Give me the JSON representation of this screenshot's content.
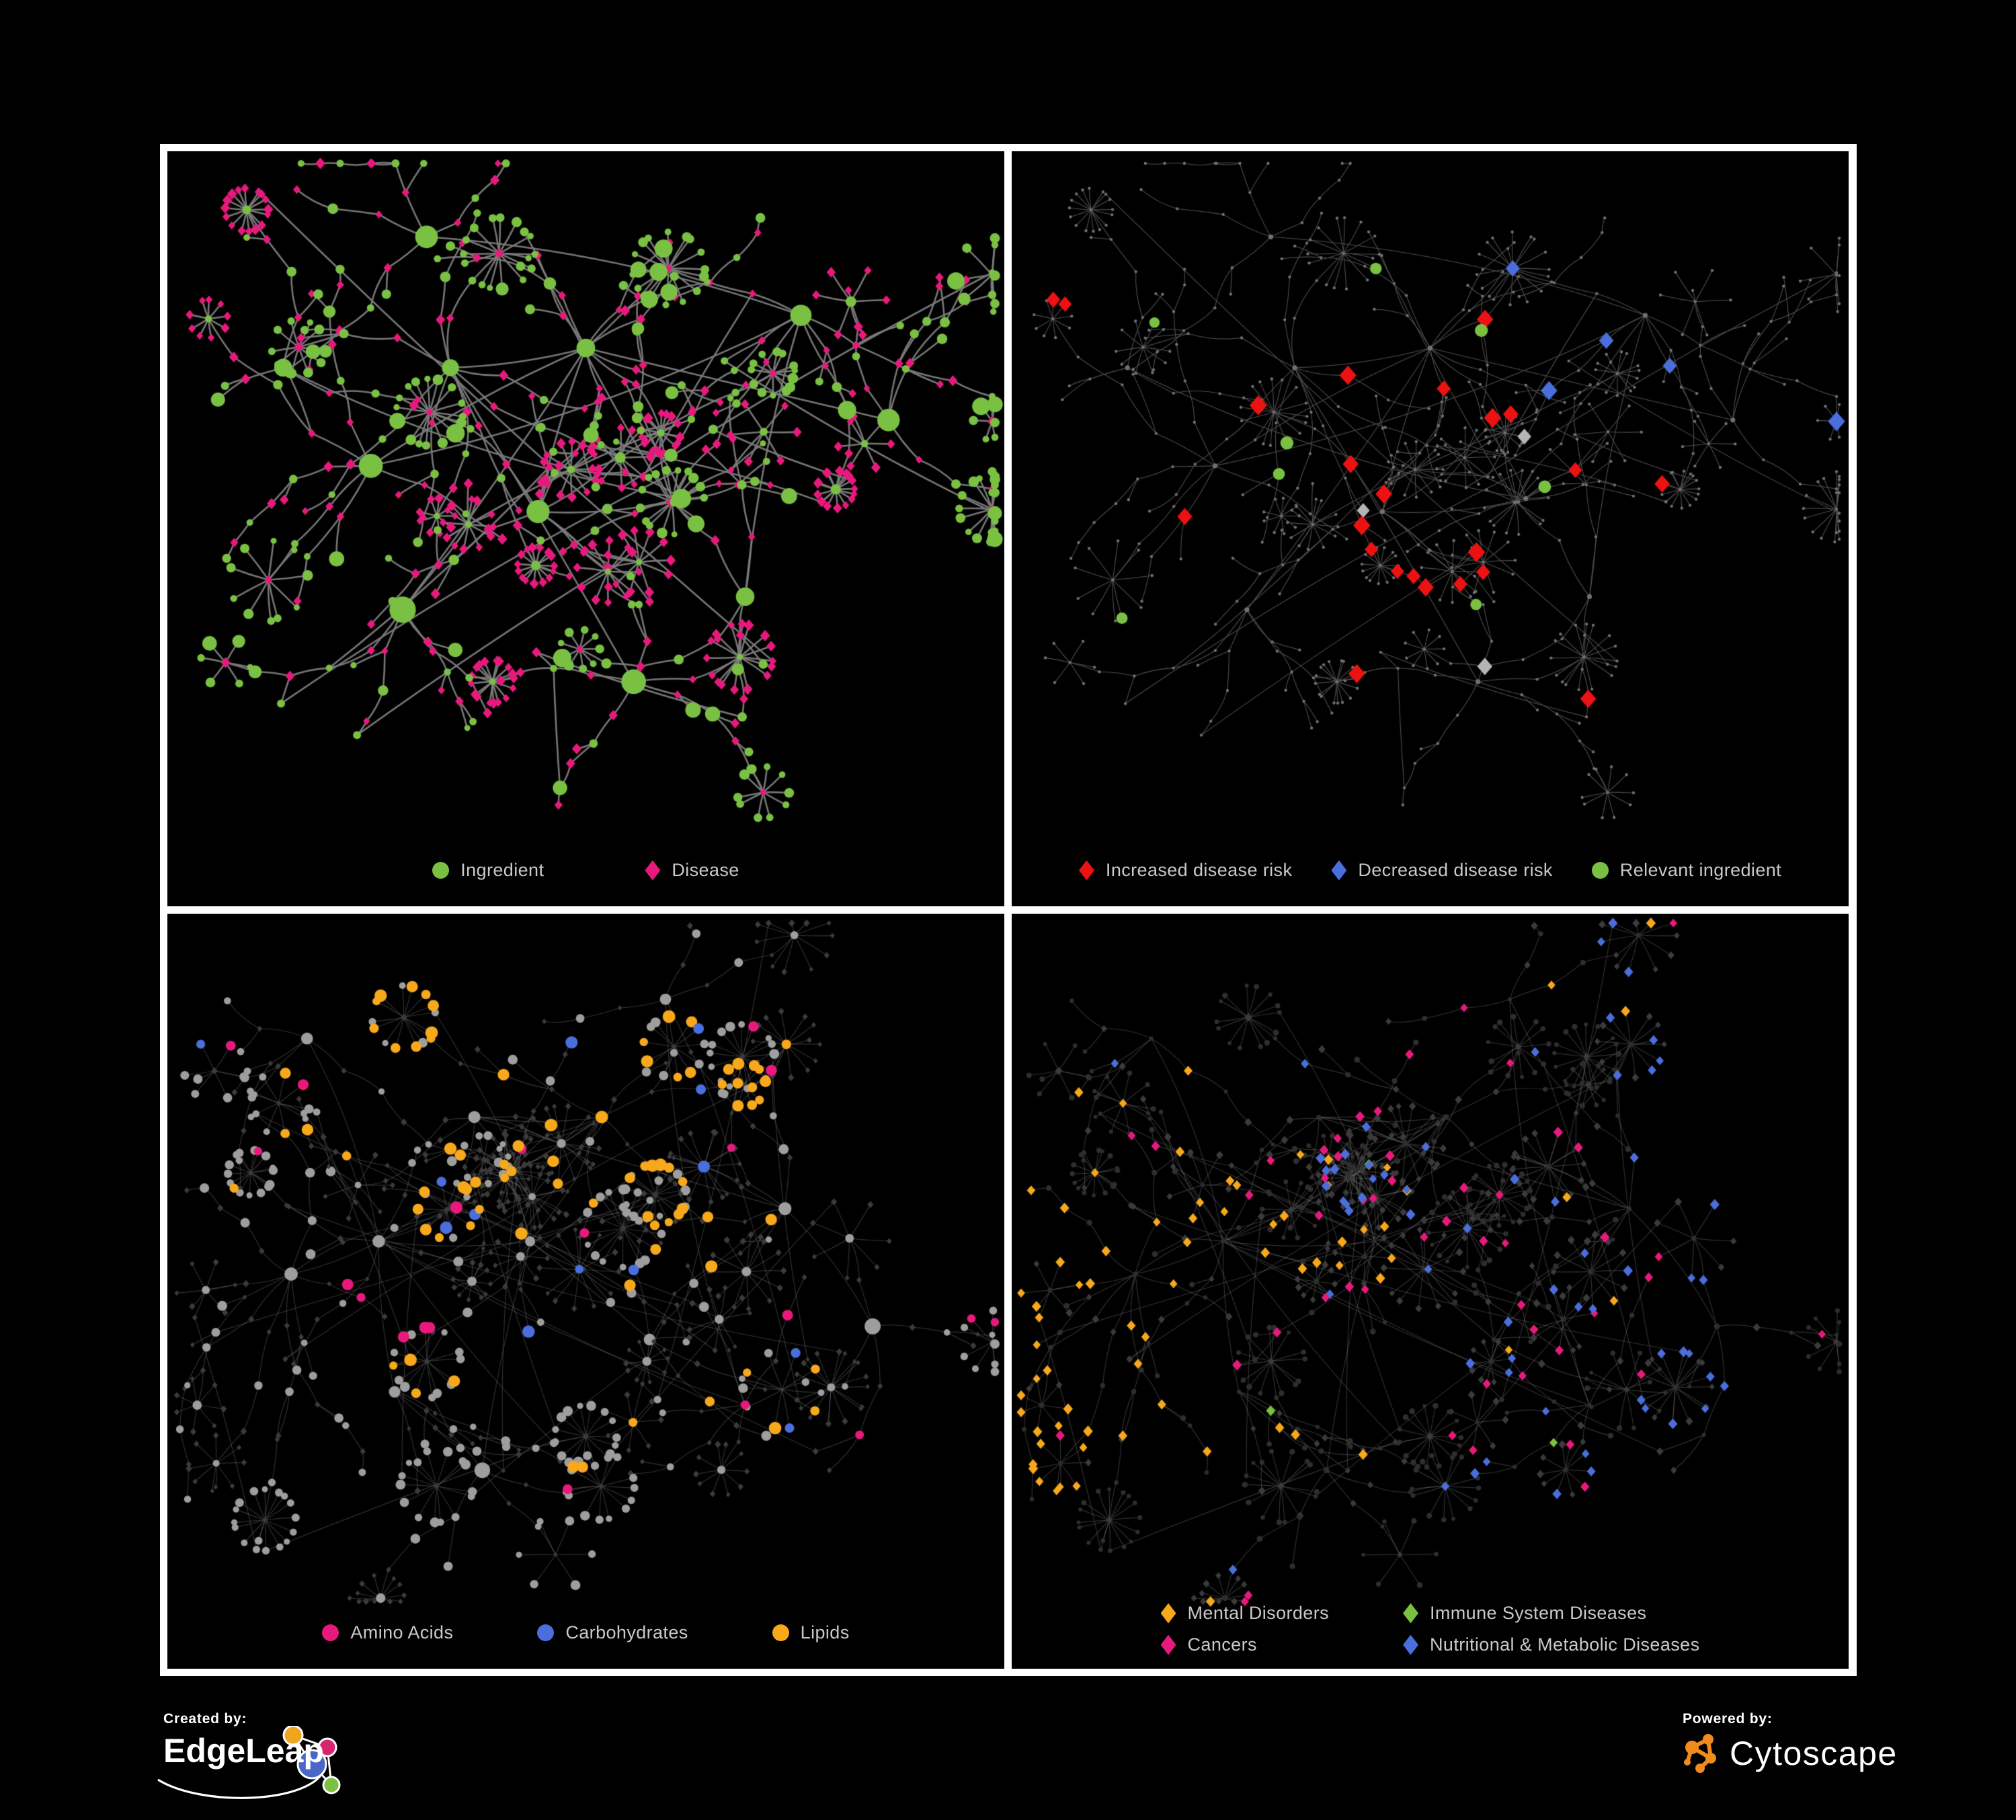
{
  "panels": [
    {
      "name": "ingredient-disease-network",
      "legend": [
        {
          "shape": "circle",
          "color": "#7ac143",
          "label": "Ingredient"
        },
        {
          "shape": "diamond",
          "color": "#e8197d",
          "label": "Disease"
        }
      ]
    },
    {
      "name": "disease-risk-network",
      "legend": [
        {
          "shape": "diamond",
          "color": "#ed1212",
          "label": "Increased disease risk"
        },
        {
          "shape": "diamond",
          "color": "#4a6fdd",
          "label": "Decreased disease risk"
        },
        {
          "shape": "circle",
          "color": "#7ac143",
          "label": "Relevant ingredient"
        }
      ]
    },
    {
      "name": "ingredient-classes-network",
      "legend": [
        {
          "shape": "circle",
          "color": "#e8197d",
          "label": "Amino Acids"
        },
        {
          "shape": "circle",
          "color": "#4a6fdd",
          "label": "Carbohydrates"
        },
        {
          "shape": "circle",
          "color": "#f7a81b",
          "label": "Lipids"
        }
      ]
    },
    {
      "name": "disease-classes-network",
      "legend": [
        {
          "shape": "diamond",
          "color": "#f7a81b",
          "label": "Mental Disorders"
        },
        {
          "shape": "diamond",
          "color": "#7ac143",
          "label": "Immune System Diseases"
        },
        {
          "shape": "diamond",
          "color": "#e8197d",
          "label": "Cancers"
        },
        {
          "shape": "diamond",
          "color": "#4a6fdd",
          "label": "Nutritional & Metabolic Diseases"
        }
      ]
    }
  ],
  "network_colors": {
    "green": "#7ac143",
    "pink": "#e8197d",
    "red": "#ed1212",
    "blue": "#4a6fdd",
    "amber": "#f7a81b",
    "gray_node": "#9e9e9e",
    "gray_highlight": "#b5b5b5",
    "muted_diamond": "#3b3b3b",
    "muted_circle": "#2e2e2e",
    "base_dot": "#717171",
    "edge_bright": "#7c7c7c",
    "edge_dim": "#4f4f4f",
    "edge_faint": "#969696",
    "panel_background": "#000000",
    "panel_border": "#ffffff",
    "legend_text": "#c9c9c9"
  },
  "footer": {
    "created_by_label": "Created by:",
    "created_by_brand": "EdgeLeap",
    "powered_by_label": "Powered by:",
    "powered_by_brand": "Cytoscape"
  }
}
